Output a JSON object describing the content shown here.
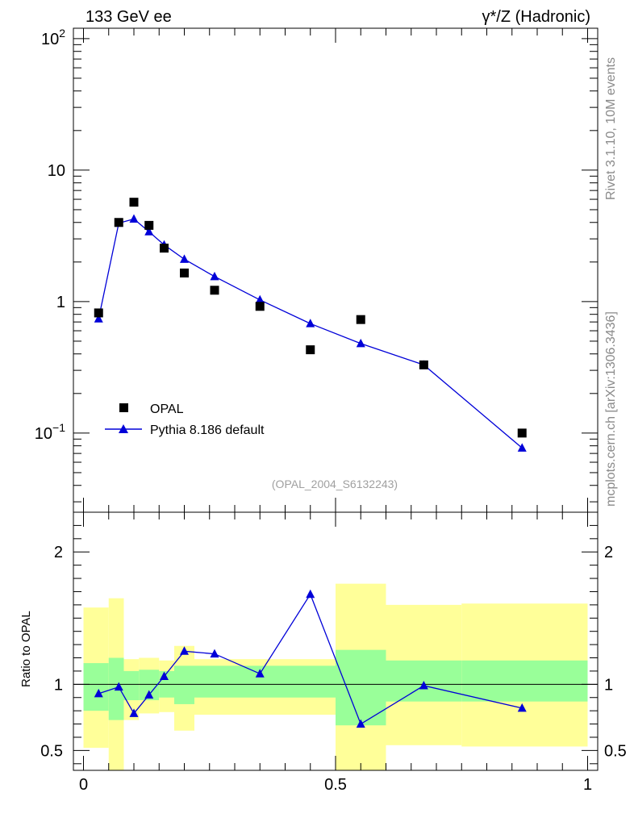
{
  "header": {
    "left_title": "133 GeV ee",
    "right_title": "γ*/Z (Hadronic)"
  },
  "side_labels": {
    "rivet": "Rivet 3.1.10,  10M events",
    "mcplots": "mcplots.cern.ch [arXiv:1306.3436]"
  },
  "analysis_ref": "(OPAL_2004_S6132243)",
  "colors": {
    "mc_line": "#0000d8",
    "band_inner": "#99ff99",
    "band_outer": "#ffff99",
    "data_marker": "#000000"
  },
  "chart_data": [
    {
      "type": "scatter",
      "panel": "main",
      "y_scale": "log",
      "ylim": [
        0.025,
        120
      ],
      "xlim": [
        -0.02,
        1.02
      ],
      "yticks": [
        {
          "value": 100,
          "base": "10",
          "exp": "2"
        },
        {
          "value": 10,
          "base": "10",
          "exp": ""
        },
        {
          "value": 1,
          "base": "1",
          "exp": ""
        },
        {
          "value": 0.1,
          "base": "10",
          "exp": "−1"
        }
      ],
      "legend": {
        "placement": "bottom-left",
        "entries": [
          {
            "label": "OPAL",
            "marker": "square"
          },
          {
            "label": "Pythia 8.186 default",
            "marker": "triangle-line"
          }
        ]
      },
      "series": [
        {
          "name": "OPAL",
          "x": [
            0.03,
            0.07,
            0.1,
            0.13,
            0.16,
            0.2,
            0.26,
            0.35,
            0.45,
            0.55,
            0.675,
            0.87
          ],
          "y": [
            0.82,
            4.0,
            5.7,
            3.8,
            2.55,
            1.65,
            1.22,
            0.92,
            0.43,
            0.73,
            0.33,
            0.1
          ]
        },
        {
          "name": "Pythia 8.186 default",
          "x": [
            0.03,
            0.07,
            0.1,
            0.13,
            0.16,
            0.2,
            0.26,
            0.35,
            0.45,
            0.55,
            0.675,
            0.87
          ],
          "y": [
            0.74,
            3.95,
            4.25,
            3.4,
            2.7,
            2.1,
            1.55,
            1.03,
            0.68,
            0.48,
            0.33,
            0.077
          ]
        }
      ]
    },
    {
      "type": "line",
      "panel": "ratio",
      "ylabel": "Ratio to OPAL",
      "ylim": [
        0.35,
        2.3
      ],
      "xlim": [
        -0.02,
        1.02
      ],
      "xticks": [
        "0",
        "0.5",
        "1"
      ],
      "xtick_values": [
        0,
        0.5,
        1
      ],
      "yticks": [
        "0.5",
        "1",
        "2"
      ],
      "ytick_values": [
        0.5,
        1,
        2
      ],
      "reference_line": 1,
      "bands": {
        "edges": [
          0.0,
          0.05,
          0.08,
          0.11,
          0.15,
          0.18,
          0.22,
          0.4,
          0.5,
          0.6,
          0.75,
          1.0
        ],
        "inner_low": [
          0.8,
          0.73,
          0.88,
          0.88,
          0.9,
          0.85,
          0.9,
          0.9,
          0.69,
          0.87,
          0.87
        ],
        "inner_high": [
          1.16,
          1.2,
          1.1,
          1.11,
          1.1,
          1.14,
          1.14,
          1.14,
          1.26,
          1.18,
          1.18
        ],
        "outer_low": [
          0.52,
          0.35,
          0.73,
          0.78,
          0.79,
          0.65,
          0.77,
          0.77,
          0.35,
          0.54,
          0.53
        ],
        "outer_high": [
          1.58,
          1.65,
          1.19,
          1.2,
          1.18,
          1.29,
          1.19,
          1.19,
          1.76,
          1.6,
          1.61
        ]
      },
      "series": [
        {
          "name": "Pythia 8.186 default",
          "x": [
            0.03,
            0.07,
            0.1,
            0.13,
            0.16,
            0.2,
            0.26,
            0.35,
            0.45,
            0.55,
            0.675,
            0.87
          ],
          "y": [
            0.93,
            0.98,
            0.78,
            0.92,
            1.06,
            1.25,
            1.23,
            1.08,
            1.68,
            0.7,
            0.99,
            0.82
          ]
        }
      ]
    }
  ]
}
